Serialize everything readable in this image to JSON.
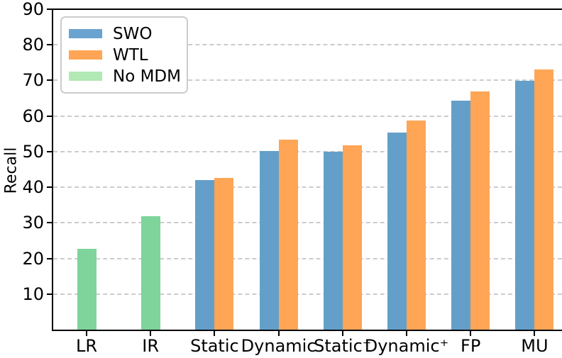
{
  "chart_data": {
    "type": "bar",
    "title": "",
    "xlabel": "",
    "ylabel": "Recall",
    "ylim": [
      0,
      90
    ],
    "yticks": [
      10,
      20,
      30,
      40,
      50,
      60,
      70,
      80,
      90
    ],
    "grid": "horizontal dashed",
    "legend_position": "upper left",
    "categories": [
      "LR",
      "IR",
      "Static",
      "Dynamic",
      "Static⁺",
      "Dynamic⁺",
      "FP",
      "MU"
    ],
    "series": [
      {
        "name": "SWO",
        "color": "#649fca",
        "legend_color": "#6ba3d0",
        "values": [
          null,
          null,
          42.0,
          50.2,
          50.0,
          55.4,
          64.3,
          69.8
        ]
      },
      {
        "name": "WTL",
        "color": "#ffa556",
        "legend_color": "#ffa556",
        "values": [
          null,
          null,
          42.6,
          53.4,
          51.8,
          58.8,
          67.0,
          73.0
        ]
      },
      {
        "name": "No MDM",
        "color": "#7ed49b",
        "legend_color": "#b2e9b5",
        "values": [
          22.7,
          31.8,
          null,
          null,
          null,
          null,
          null,
          null
        ]
      }
    ]
  },
  "colors": {
    "spine": "#000000",
    "grid": "#cccccc",
    "text": "#000000",
    "background": "#ffffff"
  }
}
